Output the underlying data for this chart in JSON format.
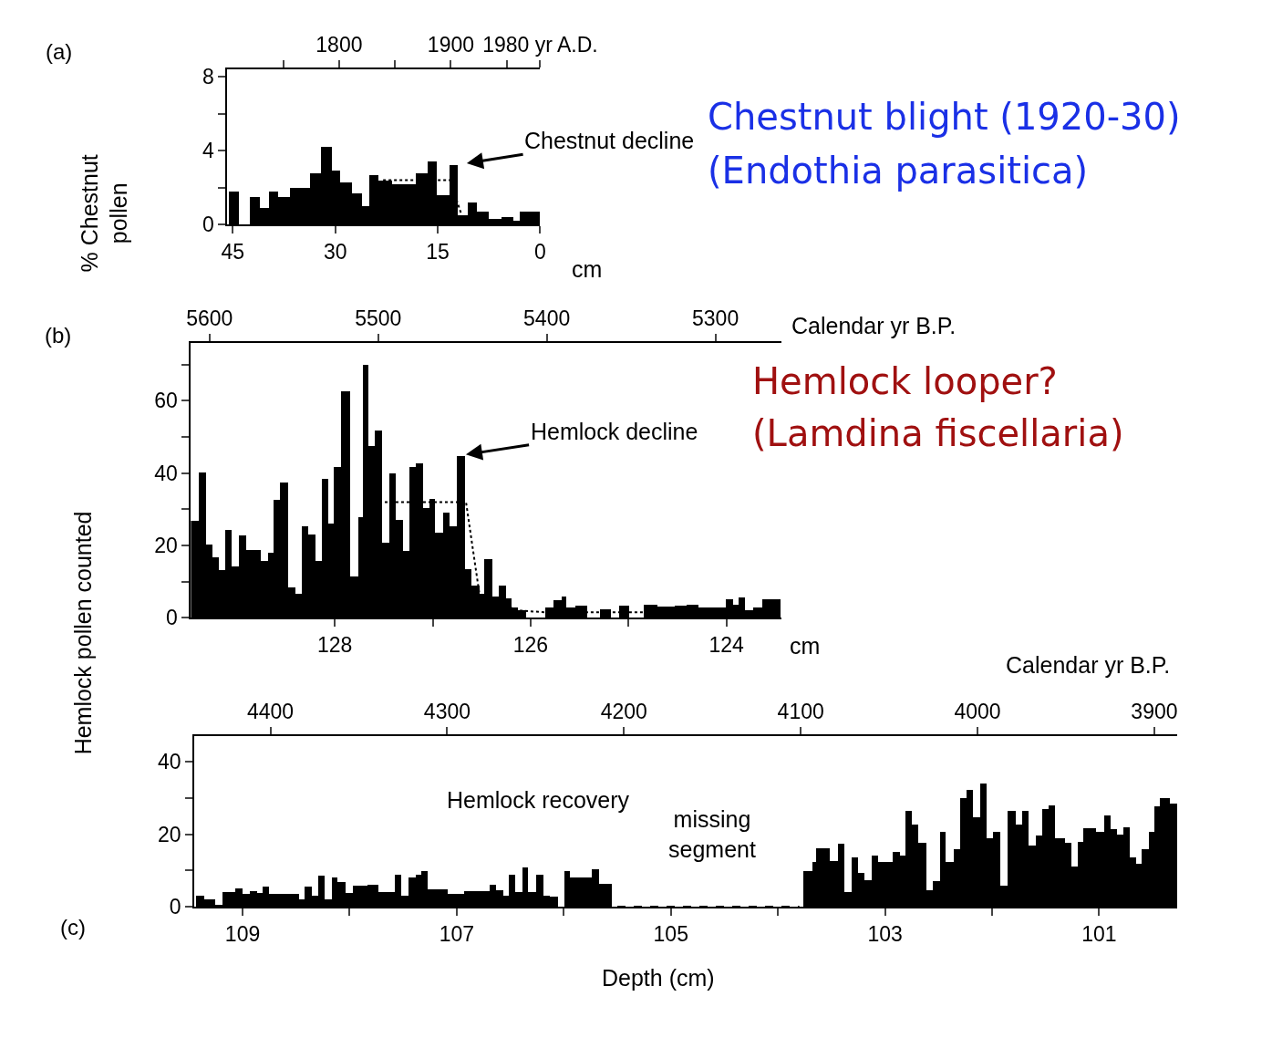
{
  "chart_data": [
    {
      "type": "histogram",
      "xlabel": "cm",
      "ylabel": "% Chestnut\npollen",
      "annotations": [
        "(a)",
        "Chestnut blight (1920-30)",
        "(Endothia parasitica)",
        {
          "text": "Chestnut decline",
          "x": 12.6,
          "y": 3.2
        }
      ],
      "xlim": [
        45.8,
        0
      ],
      "xticks": [
        45,
        30,
        15,
        0
      ],
      "ylim": [
        0,
        8.4
      ],
      "yticks": [
        0,
        {
          "value": 2,
          "label": null
        },
        4,
        {
          "value": 6,
          "label": null
        },
        8
      ],
      "x2lim": [
        1700,
        1980
      ],
      "x2ticks": [
        {
          "value": 1750,
          "label": null
        },
        1800,
        {
          "value": 1850,
          "label": null
        },
        1900,
        {
          "value": 1950,
          "label": null
        },
        {
          "value": 1980,
          "label": "1980 yr A.D."
        }
      ],
      "series": [
        {
          "color": "#000000",
          "bins": [
            45.6,
            44.0,
            42.5,
            41.0,
            39.7,
            38.3,
            36.6,
            33.6,
            32.1,
            30.5,
            29.2,
            27.5,
            26.0,
            25.0,
            23.7,
            21.6,
            18.2,
            16.5,
            15.1,
            13.2,
            12.0,
            10.6,
            9.2,
            7.5,
            5.6,
            3.9,
            3.0,
            0
          ],
          "values": [
            1.8,
            null,
            1.5,
            0.9,
            1.8,
            1.5,
            2.0,
            2.8,
            4.2,
            2.9,
            2.3,
            1.7,
            1.0,
            2.7,
            2.4,
            2.2,
            2.8,
            3.4,
            1.6,
            3.2,
            0.5,
            1.2,
            0.7,
            0.3,
            0.4,
            0.2,
            0.7
          ]
        },
        {
          "type": "line",
          "color": "#000000",
          "line_style": "dotted",
          "x": [
            23.0,
            13.2,
            11.5
          ],
          "values": [
            2.4,
            2.4,
            0.5
          ]
        }
      ]
    },
    {
      "type": "histogram",
      "xlabel": "cm",
      "x2label": "Calendar yr B.P.",
      "annotations": [
        "(b)",
        "Hemlock looper?",
        "(Lamdina fiscellaria)",
        {
          "text": "Hemlock decline",
          "x": 126.79,
          "y": 44.6
        }
      ],
      "xlim": [
        129.47,
        123.44
      ],
      "xticks": [
        128,
        {
          "value": 127,
          "label": null
        },
        126,
        {
          "value": 125,
          "label": null
        },
        124
      ],
      "ylim": [
        0,
        76
      ],
      "yticks": [
        0,
        {
          "value": 10,
          "label": null
        },
        20,
        {
          "value": 30,
          "label": null
        },
        40,
        {
          "value": 50,
          "label": null
        },
        60,
        {
          "value": 70,
          "label": null
        }
      ],
      "x2lim": [
        5611,
        5261
      ],
      "x2ticks": [
        5600,
        5500,
        5400,
        5300
      ],
      "series": [
        {
          "color": "#000000",
          "bins": [
            129.47,
            129.39,
            129.31,
            129.25,
            129.18,
            129.12,
            129.05,
            128.98,
            128.9,
            128.75,
            128.68,
            128.62,
            128.56,
            128.47,
            128.4,
            128.33,
            128.27,
            128.19,
            128.13,
            128.06,
            128.01,
            127.93,
            127.84,
            127.76,
            127.71,
            127.65,
            127.59,
            127.51,
            127.44,
            127.37,
            127.3,
            127.23,
            127.17,
            127.09,
            127.03,
            126.97,
            126.89,
            126.82,
            126.75,
            126.67,
            126.6,
            126.52,
            126.47,
            126.39,
            126.32,
            126.25,
            126.19,
            126.13,
            126.04,
            125.85,
            125.76,
            125.68,
            125.63,
            125.54,
            125.42,
            125.29,
            125.18,
            125.09,
            124.99,
            124.84,
            124.7,
            124.52,
            124.4,
            124.28,
            124.0,
            123.93,
            123.87,
            123.81,
            123.72,
            123.63,
            123.44
          ],
          "values": [
            26.7,
            40.2,
            20.2,
            16.7,
            13.2,
            24.3,
            14.2,
            22.7,
            18.8,
            15.8,
            17.9,
            32.5,
            37.3,
            8.3,
            6.7,
            25.3,
            22.9,
            15.8,
            38.5,
            26,
            41.7,
            62.7,
            11.5,
            27.7,
            70,
            47.5,
            51.8,
            20.7,
            40,
            27.1,
            18.5,
            41.7,
            42.7,
            30.4,
            32.9,
            23.5,
            29,
            25.2,
            44.6,
            13.3,
            8.8,
            6.7,
            16.2,
            5.8,
            9,
            5.3,
            2.8,
            2,
            null,
            2.8,
            4.8,
            5.8,
            2.8,
            3.4,
            null,
            2.4,
            null,
            3.3,
            null,
            3.7,
            3,
            3.4,
            3.7,
            2.8,
            5,
            3.7,
            5.6,
            2,
            2.8,
            5
          ]
        },
        {
          "type": "line",
          "color": "#000000",
          "line_style": "dotted",
          "x": [
            127.49,
            126.66,
            126.52,
            126.13,
            125.85,
            123.44
          ],
          "values": [
            32,
            32,
            6,
            2,
            1.5,
            1.5
          ]
        }
      ]
    },
    {
      "type": "histogram",
      "xlabel": "Depth (cm)",
      "ylabel": "Hemlock pollen counted",
      "x2label": "Calendar yr B.P.",
      "annotations": [
        "(c)",
        "Hemlock recovery",
        "missing\nsegment"
      ],
      "xlim": [
        109.45,
        100.27
      ],
      "xticks": [
        109,
        {
          "value": 108,
          "label": null
        },
        107,
        {
          "value": 106,
          "label": null
        },
        105,
        {
          "value": 104,
          "label": null
        },
        103,
        {
          "value": 102,
          "label": null
        },
        101
      ],
      "ylim": [
        0,
        47
      ],
      "yticks": [
        0,
        {
          "value": 10,
          "label": null
        },
        20,
        {
          "value": 30,
          "label": null
        },
        40
      ],
      "x2lim": [
        4443,
        3887
      ],
      "x2ticks": [
        4400,
        4300,
        4200,
        4100,
        4000,
        3900
      ],
      "series": [
        {
          "color": "#000000",
          "bins": [
            109.43,
            109.36,
            109.25,
            109.19,
            109.07,
            109.0,
            108.93,
            108.86,
            108.81,
            108.75,
            108.47,
            108.42,
            108.35,
            108.29,
            108.23,
            108.16,
            108.11,
            108.04,
            107.97,
            107.83,
            107.73,
            107.58,
            107.52,
            107.45,
            107.38,
            107.33,
            107.27,
            107.08,
            106.93,
            106.69,
            106.63,
            106.56,
            106.51,
            106.45,
            106.38,
            106.33,
            106.26,
            106.19,
            106.13,
            106.05,
            105.99,
            105.94,
            105.74,
            105.67,
            105.55,
            103.76,
            103.68,
            103.64,
            103.51,
            103.44,
            103.38,
            103.31,
            103.25,
            103.19,
            103.12,
            103.06,
            103.0,
            102.93,
            102.86,
            102.81,
            102.75,
            102.69,
            102.61,
            102.55,
            102.48,
            102.43,
            102.36,
            102.3,
            102.24,
            102.18,
            102.11,
            102.05,
            101.99,
            101.92,
            101.85,
            101.78,
            101.72,
            101.66,
            101.59,
            101.53,
            101.47,
            101.41,
            101.32,
            101.26,
            101.2,
            101.15,
            101.03,
            100.95,
            100.89,
            100.83,
            100.77,
            100.71,
            100.65,
            100.6,
            100.53,
            100.48,
            100.43,
            100.37,
            100.34,
            100.27
          ],
          "values": [
            3.1,
            2.1,
            0.4,
            4,
            5.1,
            3.4,
            4.3,
            3.8,
            5.5,
            3.6,
            2.1,
            5.5,
            3,
            8.5,
            2.1,
            8.1,
            6.8,
            3.8,
            5.7,
            6.1,
            4.1,
            8.9,
            3.1,
            8.1,
            8.8,
            9.8,
            4.9,
            3.4,
            4.3,
            6.1,
            4.4,
            3,
            8.9,
            4,
            10.8,
            4,
            8.8,
            3,
            2.8,
            null,
            9.8,
            8.1,
            10.2,
            6.2,
            null,
            9.7,
            12.3,
            16.2,
            12.6,
            17.4,
            4.1,
            13.6,
            9.2,
            7.4,
            14,
            12.3,
            12.3,
            15,
            14,
            26.3,
            22.6,
            17.7,
            4.5,
            7,
            20.6,
            12.3,
            15.8,
            30,
            32.1,
            24.7,
            33.9,
            18.9,
            20.6,
            5.9,
            26.3,
            22.6,
            26.3,
            16.9,
            19.6,
            27,
            28,
            18.8,
            17.7,
            11.1,
            17.9,
            21.6,
            20.6,
            25.1,
            21.4,
            19.8,
            21.8,
            13.6,
            11.9,
            15.8,
            20.6,
            27.6,
            29.8,
            30,
            28.4
          ]
        },
        {
          "type": "line",
          "color": "#000000",
          "line_style": "dashed",
          "x": [
            105.5,
            103.8
          ],
          "values": [
            0,
            0
          ]
        }
      ]
    }
  ]
}
